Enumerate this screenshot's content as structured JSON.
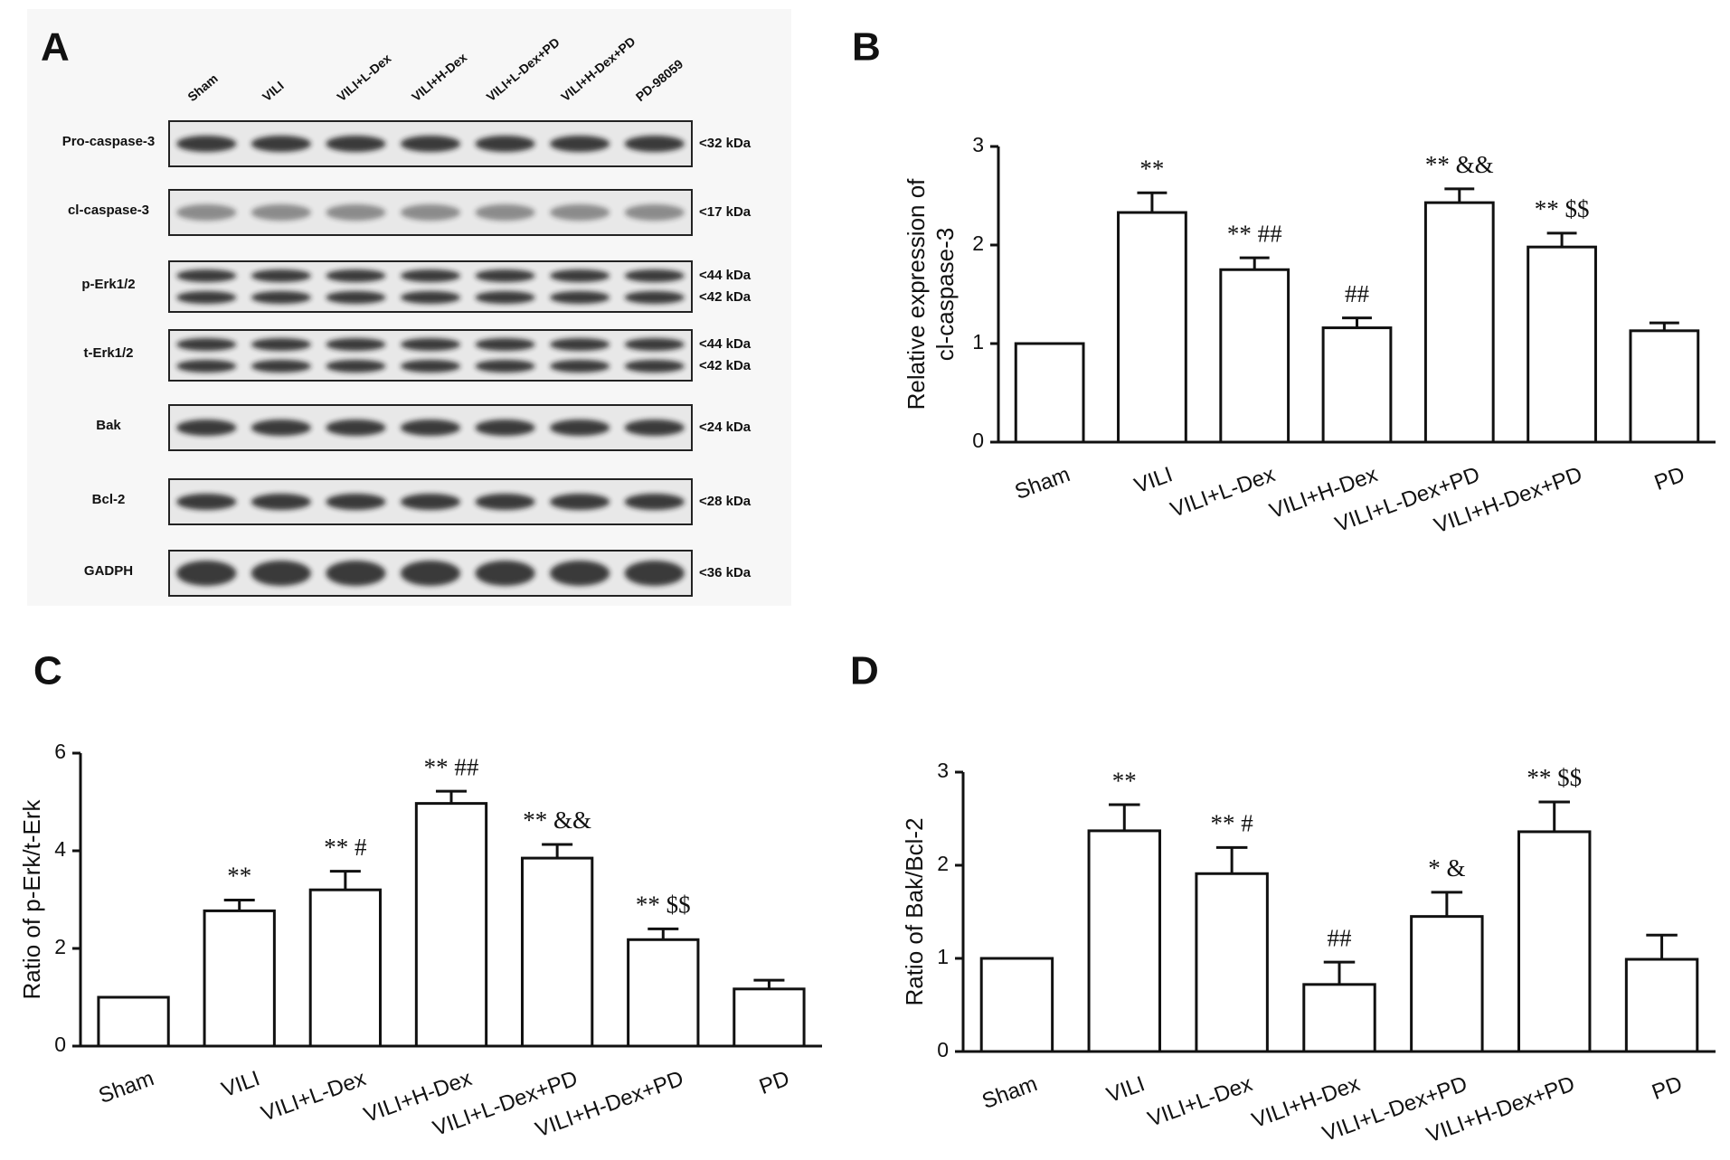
{
  "blot": {
    "panel": "A",
    "lanes": [
      "Sham",
      "VILI",
      "VILI+L-Dex",
      "VILI+H-Dex",
      "VILI+L-Dex+PD",
      "VILI+H-Dex+PD",
      "PD-98059"
    ],
    "rows": [
      {
        "label": "Pro-caspase-3",
        "sizes": [
          "<32 kDa"
        ]
      },
      {
        "label": "cl-caspase-3",
        "sizes": [
          "<17 kDa"
        ]
      },
      {
        "label": "p-Erk1/2",
        "sizes": [
          "<44 kDa",
          "<42 kDa"
        ]
      },
      {
        "label": "t-Erk1/2",
        "sizes": [
          "<44 kDa",
          "<42 kDa"
        ]
      },
      {
        "label": "Bak",
        "sizes": [
          "<24 kDa"
        ]
      },
      {
        "label": "Bcl-2",
        "sizes": [
          "<28 kDa"
        ]
      },
      {
        "label": "GADPH",
        "sizes": [
          "<36  kDa"
        ]
      }
    ]
  },
  "chart_data": [
    {
      "type": "bar",
      "panel": "B",
      "ylabel": [
        "Relative expression of",
        "cl-caspase-3"
      ],
      "categories": [
        "Sham",
        "VILI",
        "VILI+L-Dex",
        "VILI+H-Dex",
        "VILI+L-Dex+PD",
        "VILI+H-Dex+PD",
        "PD"
      ],
      "values": [
        1.0,
        2.33,
        1.75,
        1.16,
        2.43,
        1.98,
        1.13
      ],
      "errors": [
        0,
        0.2,
        0.12,
        0.1,
        0.14,
        0.14,
        0.08
      ],
      "annotations": [
        null,
        "**",
        "** ##",
        "##",
        "** &&",
        "** $$",
        null
      ],
      "ylim": [
        0,
        3
      ],
      "yticks": [
        0,
        1,
        2,
        3
      ]
    },
    {
      "type": "bar",
      "panel": "C",
      "ylabel": [
        "Ratio of p-Erk/t-Erk"
      ],
      "categories": [
        "Sham",
        "VILI",
        "VILI+L-Dex",
        "VILI+H-Dex",
        "VILI+L-Dex+PD",
        "VILI+H-Dex+PD",
        "PD"
      ],
      "values": [
        1.0,
        2.77,
        3.2,
        4.97,
        3.85,
        2.18,
        1.17
      ],
      "errors": [
        0,
        0.22,
        0.38,
        0.25,
        0.28,
        0.22,
        0.18
      ],
      "annotations": [
        null,
        "**",
        "** #",
        "** ##",
        "** &&",
        "** $$",
        null
      ],
      "ylim": [
        0,
        6
      ],
      "yticks": [
        0,
        2,
        4,
        6
      ]
    },
    {
      "type": "bar",
      "panel": "D",
      "ylabel": [
        "Ratio of Bak/Bcl-2"
      ],
      "categories": [
        "Sham",
        "VILI",
        "VILI+L-Dex",
        "VILI+H-Dex",
        "VILI+L-Dex+PD",
        "VILI+H-Dex+PD",
        "PD"
      ],
      "values": [
        1.0,
        2.37,
        1.91,
        0.72,
        1.45,
        2.36,
        0.99
      ],
      "errors": [
        0,
        0.28,
        0.28,
        0.24,
        0.26,
        0.32,
        0.26
      ],
      "annotations": [
        null,
        "**",
        "** #",
        "##",
        "* &",
        "** $$",
        null
      ],
      "ylim": [
        0,
        3
      ],
      "yticks": [
        0,
        1,
        2,
        3
      ]
    }
  ]
}
